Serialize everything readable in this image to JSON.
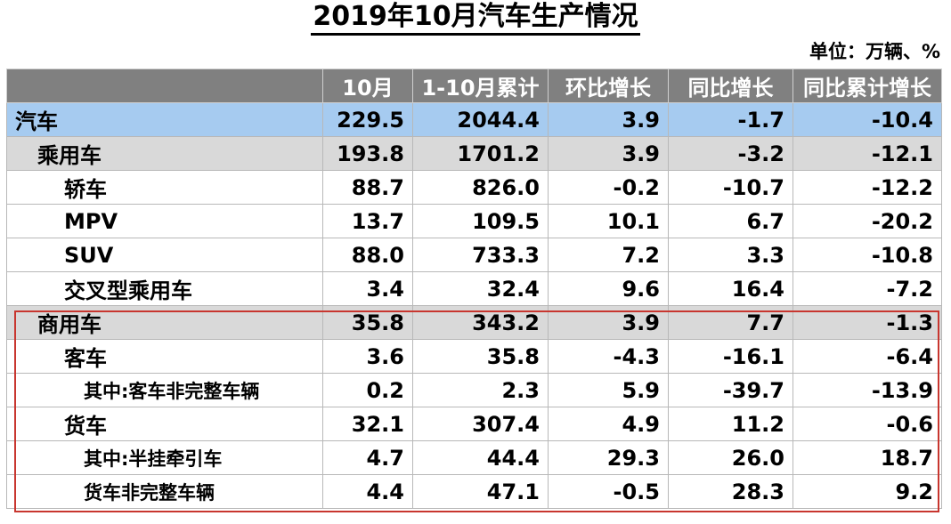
{
  "title": "2019年10月汽车生产情况",
  "unit": "单位：万辆、%",
  "table": {
    "headers": [
      "",
      "10月",
      "1-10月累计",
      "环比增长",
      "同比增长",
      "同比累计增长"
    ],
    "rows": [
      {
        "label": "汽车",
        "values": [
          "229.5",
          "2044.4",
          "3.9",
          "-1.7",
          "-10.4"
        ]
      },
      {
        "label": "乘用车",
        "values": [
          "193.8",
          "1701.2",
          "3.9",
          "-3.2",
          "-12.1"
        ]
      },
      {
        "label": "轿车",
        "values": [
          "88.7",
          "826.0",
          "-0.2",
          "-10.7",
          "-12.2"
        ]
      },
      {
        "label": "MPV",
        "values": [
          "13.7",
          "109.5",
          "10.1",
          "6.7",
          "-20.2"
        ]
      },
      {
        "label": "SUV",
        "values": [
          "88.0",
          "733.3",
          "7.2",
          "3.3",
          "-10.8"
        ]
      },
      {
        "label": "交叉型乘用车",
        "values": [
          "3.4",
          "32.4",
          "9.6",
          "16.4",
          "-7.2"
        ]
      },
      {
        "label": "商用车",
        "values": [
          "35.8",
          "343.2",
          "3.9",
          "7.7",
          "-1.3"
        ]
      },
      {
        "label": "客车",
        "values": [
          "3.6",
          "35.8",
          "-4.3",
          "-16.1",
          "-6.4"
        ]
      },
      {
        "label": "其中:客车非完整车辆",
        "values": [
          "0.2",
          "2.3",
          "5.9",
          "-39.7",
          "-13.9"
        ]
      },
      {
        "label": "货车",
        "values": [
          "32.1",
          "307.4",
          "4.9",
          "11.2",
          "-0.6"
        ]
      },
      {
        "label": "其中:半挂牵引车",
        "values": [
          "4.7",
          "44.4",
          "29.3",
          "26.0",
          "18.7"
        ]
      },
      {
        "label": "货车非完整车辆",
        "values": [
          "4.4",
          "47.1",
          "-0.5",
          "28.3",
          "9.2"
        ]
      }
    ]
  },
  "colors": {
    "header_bg": "#808080",
    "main_row_bg": "#a6cbf0",
    "sub_row_bg": "#d9d9d9",
    "highlight_border": "#c8362f"
  }
}
